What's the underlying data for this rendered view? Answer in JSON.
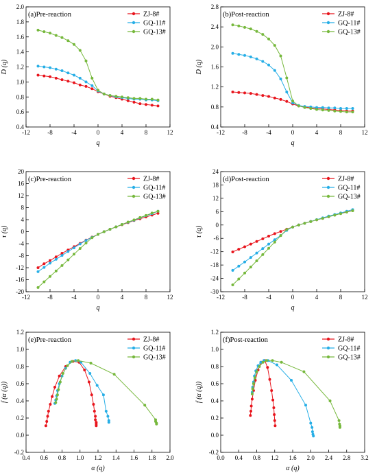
{
  "colors": {
    "ZJ-8#": "#e8141c",
    "GQ-11#": "#26aee6",
    "GQ-13#": "#76b83c"
  },
  "chart_data": [
    {
      "id": "a",
      "type": "line",
      "title": "(a)Pre-reaction",
      "xlabel": "q",
      "ylabel": "D (q)",
      "xlim": [
        -12,
        12
      ],
      "ylim": [
        0.4,
        2.0
      ],
      "xticks": [
        -12,
        -8,
        -4,
        0,
        4,
        8,
        12
      ],
      "yticks": [
        0.4,
        0.6,
        0.8,
        1.0,
        1.2,
        1.4,
        1.6,
        1.8,
        2.0
      ],
      "xtick_labels": [
        "-12",
        "-8",
        "-4",
        "0",
        "4",
        "8",
        "12"
      ],
      "ytick_labels": [
        "0.4",
        "0.6",
        "0.8",
        "1.0",
        "1.2",
        "1.4",
        "1.6",
        "1.8",
        "2.0"
      ],
      "legend": [
        "ZJ-8#",
        "GQ-11#",
        "GQ-13#"
      ],
      "legend_position": "top-right",
      "x": [
        -10,
        -9,
        -8,
        -7,
        -6,
        -5,
        -4,
        -3,
        -2,
        -1,
        0,
        1,
        2,
        3,
        4,
        5,
        6,
        7,
        8,
        9,
        10
      ],
      "series": [
        {
          "name": "ZJ-8#",
          "values": [
            1.09,
            1.08,
            1.07,
            1.05,
            1.03,
            1.01,
            0.99,
            0.96,
            0.94,
            0.91,
            0.87,
            0.84,
            0.81,
            0.79,
            0.77,
            0.75,
            0.73,
            0.71,
            0.7,
            0.69,
            0.68
          ]
        },
        {
          "name": "GQ-11#",
          "values": [
            1.21,
            1.2,
            1.19,
            1.17,
            1.15,
            1.12,
            1.09,
            1.05,
            1.0,
            0.95,
            0.88,
            0.84,
            0.82,
            0.8,
            0.79,
            0.78,
            0.77,
            0.77,
            0.76,
            0.76,
            0.75
          ]
        },
        {
          "name": "GQ-13#",
          "values": [
            1.69,
            1.67,
            1.65,
            1.62,
            1.59,
            1.55,
            1.5,
            1.42,
            1.28,
            1.05,
            0.89,
            0.84,
            0.82,
            0.81,
            0.8,
            0.79,
            0.78,
            0.78,
            0.77,
            0.77,
            0.76
          ]
        }
      ]
    },
    {
      "id": "b",
      "type": "line",
      "title": "(b)Post-reaction",
      "xlabel": "q",
      "ylabel": "D (q)",
      "xlim": [
        -12,
        12
      ],
      "ylim": [
        0.4,
        2.8
      ],
      "xticks": [
        -12,
        -8,
        -4,
        0,
        4,
        8,
        12
      ],
      "yticks": [
        0.4,
        0.8,
        1.2,
        1.6,
        2.0,
        2.4,
        2.8
      ],
      "xtick_labels": [
        "-12",
        "-8",
        "-4",
        "0",
        "4",
        "8",
        "12"
      ],
      "ytick_labels": [
        "0.4",
        "0.8",
        "1.2",
        "1.6",
        "2.0",
        "2.4",
        "2.8"
      ],
      "legend": [
        "ZJ-8#",
        "GQ-11#",
        "GQ-13#"
      ],
      "legend_position": "top-right",
      "x": [
        -10,
        -9,
        -8,
        -7,
        -6,
        -5,
        -4,
        -3,
        -2,
        -1,
        0,
        1,
        2,
        3,
        4,
        5,
        6,
        7,
        8,
        9,
        10
      ],
      "series": [
        {
          "name": "ZJ-8#",
          "values": [
            1.1,
            1.09,
            1.08,
            1.07,
            1.05,
            1.03,
            1.01,
            0.98,
            0.95,
            0.91,
            0.86,
            0.82,
            0.8,
            0.78,
            0.77,
            0.76,
            0.75,
            0.74,
            0.73,
            0.72,
            0.72
          ]
        },
        {
          "name": "GQ-11#",
          "values": [
            1.87,
            1.85,
            1.83,
            1.8,
            1.76,
            1.71,
            1.64,
            1.53,
            1.36,
            1.1,
            0.88,
            0.83,
            0.81,
            0.8,
            0.79,
            0.79,
            0.78,
            0.78,
            0.77,
            0.77,
            0.77
          ]
        },
        {
          "name": "GQ-13#",
          "values": [
            2.44,
            2.42,
            2.39,
            2.36,
            2.31,
            2.25,
            2.16,
            2.03,
            1.82,
            1.38,
            0.92,
            0.82,
            0.79,
            0.77,
            0.75,
            0.74,
            0.73,
            0.72,
            0.71,
            0.7,
            0.7
          ]
        }
      ]
    },
    {
      "id": "c",
      "type": "line",
      "title": "(c)Pre-reaction",
      "xlabel": "q",
      "ylabel": "τ (q)",
      "xlim": [
        -12,
        12
      ],
      "ylim": [
        -20,
        20
      ],
      "xticks": [
        -12,
        -8,
        -4,
        0,
        4,
        8,
        12
      ],
      "yticks": [
        -20,
        -16,
        -12,
        -8,
        -4,
        0,
        4,
        8,
        12,
        16,
        20
      ],
      "xtick_labels": [
        "-12",
        "-8",
        "-4",
        "0",
        "4",
        "8",
        "12"
      ],
      "ytick_labels": [
        "-20",
        "-16",
        "-12",
        "-8",
        "-4",
        "0",
        "4",
        "8",
        "12",
        "16",
        "20"
      ],
      "legend": [
        "ZJ-8#",
        "GQ-11#",
        "GQ-13#"
      ],
      "legend_position": "top-right",
      "x": [
        -10,
        -9,
        -8,
        -7,
        -6,
        -5,
        -4,
        -3,
        -2,
        -1,
        0,
        1,
        2,
        3,
        4,
        5,
        6,
        7,
        8,
        9,
        10
      ],
      "series": [
        {
          "name": "ZJ-8#",
          "values": [
            -12.0,
            -10.7,
            -9.6,
            -8.4,
            -7.2,
            -6.1,
            -5.0,
            -3.9,
            -2.8,
            -1.8,
            -0.9,
            0.0,
            0.8,
            1.6,
            2.3,
            3.0,
            3.7,
            4.3,
            4.9,
            5.5,
            6.1
          ]
        },
        {
          "name": "GQ-11#",
          "values": [
            -13.3,
            -11.9,
            -10.5,
            -9.2,
            -7.9,
            -6.6,
            -5.4,
            -4.1,
            -2.9,
            -1.9,
            -0.9,
            0.0,
            0.8,
            1.6,
            2.4,
            3.1,
            3.8,
            4.6,
            5.3,
            6.0,
            6.8
          ]
        },
        {
          "name": "GQ-13#",
          "values": [
            -18.6,
            -16.7,
            -14.9,
            -13.1,
            -11.3,
            -9.4,
            -7.5,
            -5.6,
            -3.8,
            -2.0,
            -0.9,
            0.0,
            0.8,
            1.6,
            2.4,
            3.2,
            3.9,
            4.7,
            5.4,
            6.2,
            6.8
          ]
        }
      ]
    },
    {
      "id": "d",
      "type": "line",
      "title": "(d)Post-reaction",
      "xlabel": "q",
      "ylabel": "τ (q)",
      "xlim": [
        -12,
        12
      ],
      "ylim": [
        -30,
        24
      ],
      "xticks": [
        -12,
        -8,
        -4,
        0,
        4,
        8,
        12
      ],
      "yticks": [
        -30,
        -24,
        -18,
        -12,
        -6,
        0,
        6,
        12,
        18,
        24
      ],
      "xtick_labels": [
        "-12",
        "-8",
        "-4",
        "0",
        "4",
        "8",
        "12"
      ],
      "ytick_labels": [
        "-30",
        "-24",
        "-18",
        "-12",
        "-6",
        "0",
        "6",
        "12",
        "18",
        "24"
      ],
      "legend": [
        "ZJ-8#",
        "GQ-11#",
        "GQ-13#"
      ],
      "legend_position": "top-right",
      "x": [
        -10,
        -9,
        -8,
        -7,
        -6,
        -5,
        -4,
        -3,
        -2,
        -1,
        0,
        1,
        2,
        3,
        4,
        5,
        6,
        7,
        8,
        9,
        10
      ],
      "series": [
        {
          "name": "ZJ-8#",
          "values": [
            -12.1,
            -10.9,
            -9.8,
            -8.6,
            -7.4,
            -6.2,
            -5.0,
            -3.9,
            -2.9,
            -1.9,
            -0.9,
            0.0,
            0.8,
            1.6,
            2.3,
            3.0,
            3.7,
            4.5,
            5.2,
            5.9,
            6.5
          ]
        },
        {
          "name": "GQ-11#",
          "values": [
            -20.4,
            -18.5,
            -16.6,
            -14.6,
            -12.6,
            -10.6,
            -8.6,
            -6.6,
            -4.7,
            -2.4,
            -0.9,
            0.0,
            0.8,
            1.6,
            2.4,
            3.2,
            4.0,
            4.7,
            5.4,
            6.2,
            6.9
          ]
        },
        {
          "name": "GQ-13#",
          "values": [
            -26.9,
            -24.3,
            -21.6,
            -18.9,
            -16.1,
            -13.3,
            -10.5,
            -7.7,
            -4.8,
            -2.0,
            -0.9,
            0.0,
            0.8,
            1.5,
            2.3,
            3.0,
            3.7,
            4.4,
            5.1,
            5.8,
            6.4
          ]
        }
      ]
    },
    {
      "id": "e",
      "type": "line",
      "title": "(e)Pre-reaction",
      "xlabel": "α (q)",
      "ylabel": "f (α (q))",
      "xlim": [
        0.4,
        2.0
      ],
      "ylim": [
        -0.2,
        1.2
      ],
      "xticks": [
        0.4,
        0.6,
        0.8,
        1.0,
        1.2,
        1.4,
        1.6,
        1.8,
        2.0
      ],
      "yticks": [
        -0.2,
        0.0,
        0.2,
        0.4,
        0.6,
        0.8,
        1.0,
        1.2
      ],
      "xtick_labels": [
        "0.4",
        "0.6",
        "0.8",
        "1.0",
        "1.2",
        "1.4",
        "1.6",
        "1.8",
        "2.0"
      ],
      "ytick_labels": [
        "-0.2",
        "0.0",
        "0.2",
        "0.4",
        "0.6",
        "0.8",
        "1.0",
        "1.2"
      ],
      "legend": [
        "ZJ-8#",
        "GQ-11#",
        "GQ-13#"
      ],
      "legend_position": "top-right",
      "series": [
        {
          "name": "ZJ-8#",
          "x": [
            0.62,
            0.63,
            0.64,
            0.65,
            0.67,
            0.69,
            0.72,
            0.77,
            0.84,
            0.92,
            0.99,
            1.05,
            1.1,
            1.13,
            1.15,
            1.16,
            1.17,
            1.17,
            1.18,
            1.18,
            1.18
          ],
          "values": [
            0.11,
            0.16,
            0.22,
            0.28,
            0.36,
            0.45,
            0.56,
            0.69,
            0.8,
            0.86,
            0.85,
            0.76,
            0.62,
            0.47,
            0.36,
            0.28,
            0.22,
            0.18,
            0.15,
            0.13,
            0.11
          ]
        },
        {
          "name": "GQ-11#",
          "x": [
            0.72,
            0.73,
            0.74,
            0.75,
            0.77,
            0.8,
            0.84,
            0.89,
            0.95,
            1.01,
            1.11,
            1.19,
            1.26,
            1.29,
            1.31,
            1.32,
            1.32
          ],
          "values": [
            0.37,
            0.41,
            0.46,
            0.52,
            0.6,
            0.69,
            0.78,
            0.85,
            0.87,
            0.85,
            0.72,
            0.58,
            0.47,
            0.28,
            0.22,
            0.17,
            0.15
          ]
        },
        {
          "name": "GQ-13#",
          "x": [
            0.73,
            0.74,
            0.75,
            0.76,
            0.78,
            0.81,
            0.86,
            0.91,
            0.98,
            1.12,
            1.38,
            1.72,
            1.84,
            1.84,
            1.85,
            1.85
          ],
          "values": [
            0.38,
            0.42,
            0.47,
            0.53,
            0.62,
            0.72,
            0.81,
            0.86,
            0.87,
            0.84,
            0.71,
            0.35,
            0.18,
            0.16,
            0.14,
            0.13
          ]
        }
      ]
    },
    {
      "id": "f",
      "type": "line",
      "title": "(f)Post-reaction",
      "xlabel": "α (q)",
      "ylabel": "f (α (q))",
      "xlim": [
        0.0,
        3.2
      ],
      "ylim": [
        -0.2,
        1.2
      ],
      "xticks": [
        0.0,
        0.4,
        0.8,
        1.2,
        1.6,
        2.0,
        2.4,
        2.8,
        3.2
      ],
      "yticks": [
        -0.2,
        0.0,
        0.2,
        0.4,
        0.6,
        0.8,
        1.0,
        1.2
      ],
      "xtick_labels": [
        "0.0",
        "0.4",
        "0.8",
        "1.2",
        "1.6",
        "2.0",
        "2.4",
        "2.8",
        "3.2"
      ],
      "ytick_labels": [
        "-0.2",
        "0.0",
        "0.2",
        "0.4",
        "0.6",
        "0.8",
        "1.0",
        "1.2"
      ],
      "legend": [
        "ZJ-8#",
        "GQ-11#",
        "GQ-13#"
      ],
      "legend_position": "top-right",
      "series": [
        {
          "name": "ZJ-8#",
          "x": [
            0.66,
            0.67,
            0.68,
            0.7,
            0.73,
            0.77,
            0.83,
            0.9,
            0.98,
            1.04,
            1.09,
            1.13,
            1.16,
            1.18,
            1.19,
            1.2,
            1.21
          ],
          "values": [
            0.23,
            0.28,
            0.34,
            0.42,
            0.52,
            0.64,
            0.76,
            0.85,
            0.87,
            0.79,
            0.65,
            0.52,
            0.41,
            0.32,
            0.24,
            0.17,
            0.11
          ]
        },
        {
          "name": "GQ-11#",
          "x": [
            0.7,
            0.71,
            0.73,
            0.75,
            0.78,
            0.83,
            0.89,
            0.96,
            1.05,
            1.25,
            1.57,
            1.89,
            2.0,
            2.03,
            2.04,
            2.05,
            2.06
          ],
          "values": [
            0.5,
            0.56,
            0.62,
            0.69,
            0.75,
            0.81,
            0.85,
            0.87,
            0.87,
            0.82,
            0.64,
            0.35,
            0.14,
            0.09,
            0.04,
            0.01,
            -0.01
          ]
        },
        {
          "name": "GQ-13#",
          "x": [
            0.7,
            0.71,
            0.73,
            0.76,
            0.8,
            0.86,
            0.94,
            1.02,
            1.15,
            1.35,
            1.85,
            2.43,
            2.63,
            2.64,
            2.65,
            2.65,
            2.65
          ],
          "values": [
            0.48,
            0.54,
            0.6,
            0.67,
            0.74,
            0.8,
            0.85,
            0.87,
            0.87,
            0.85,
            0.74,
            0.4,
            0.17,
            0.13,
            0.11,
            0.1,
            0.09
          ]
        }
      ]
    }
  ]
}
